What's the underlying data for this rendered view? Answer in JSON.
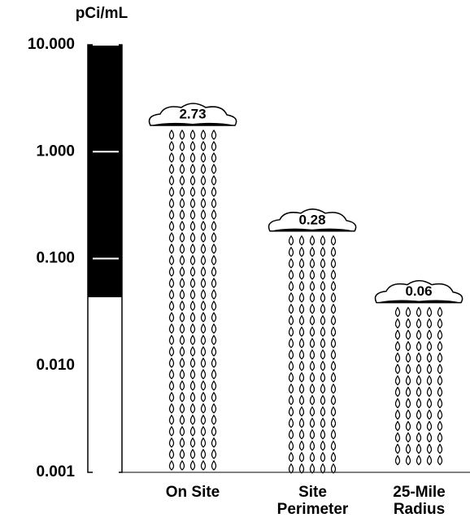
{
  "chart_data": {
    "type": "rain",
    "y_label": "pCi/mL",
    "categories": [
      "On Site",
      "Site Perimeter",
      "25-Mile Radius"
    ],
    "values": [
      2.73,
      0.28,
      0.06
    ],
    "ylim": [
      0.001,
      10
    ],
    "log_scale": true,
    "yticks": [
      {
        "value": 10,
        "label": "10.000"
      },
      {
        "value": 1,
        "label": "1.000"
      },
      {
        "value": 0.1,
        "label": "0.100"
      },
      {
        "value": 0.01,
        "label": "0.010"
      },
      {
        "value": 0.001,
        "label": "0.001"
      }
    ],
    "color": "#000000"
  }
}
